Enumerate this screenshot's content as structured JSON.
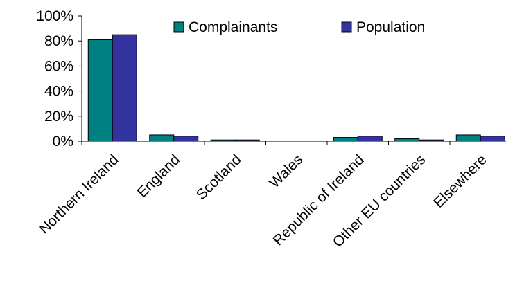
{
  "chart_data": {
    "type": "bar",
    "title": "",
    "xlabel": "",
    "ylabel": "",
    "categories": [
      "Northern Ireland",
      "England",
      "Scotland",
      "Wales",
      "Republic of Ireland",
      "Other EU countries",
      "Elsewhere"
    ],
    "series": [
      {
        "name": "Complainants",
        "color": "#008080",
        "values": [
          81,
          5,
          1,
          0,
          3,
          2,
          5
        ]
      },
      {
        "name": "Population",
        "color": "#3333a0",
        "values": [
          85,
          4,
          1,
          0,
          4,
          1,
          4
        ]
      }
    ],
    "ylim": [
      0,
      100
    ],
    "yticks": [
      0,
      20,
      40,
      60,
      80,
      100
    ],
    "ytick_labels": [
      "0%",
      "20%",
      "40%",
      "60%",
      "80%",
      "100%"
    ],
    "grid": false,
    "legend_position": "top-right"
  }
}
